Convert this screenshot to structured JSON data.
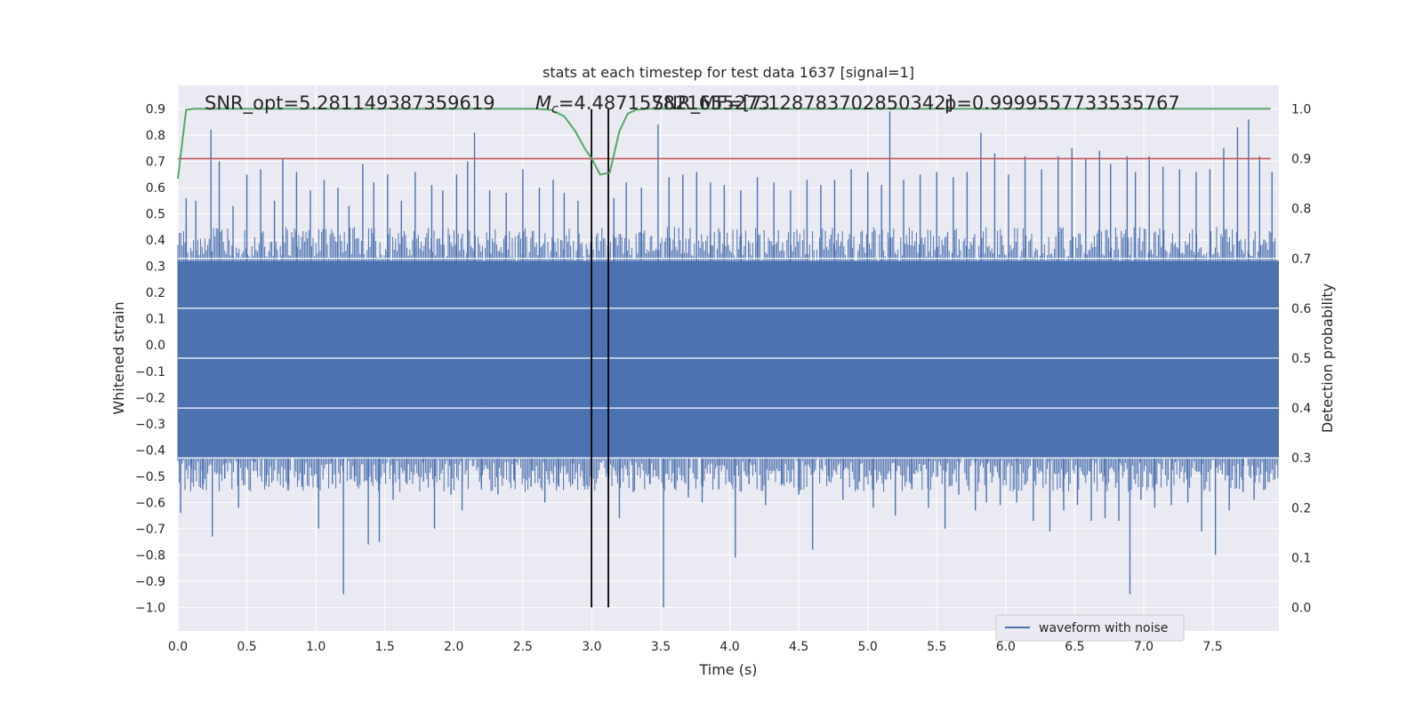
{
  "chart_data": {
    "type": "line",
    "title": "stats at each timestep for test data 1637 [signal=1]",
    "xlabel": "Time (s)",
    "ylabel": "Whitened strain",
    "y2label": "Detection probability",
    "xlim": [
      0.0,
      7.98
    ],
    "ylim": [
      -1.09,
      0.99
    ],
    "y2lim": [
      -0.047,
      1.047
    ],
    "x_ticks": [
      "0.0",
      "0.5",
      "1.0",
      "1.5",
      "2.0",
      "2.5",
      "3.0",
      "3.5",
      "4.0",
      "4.5",
      "5.0",
      "5.5",
      "6.0",
      "6.5",
      "7.0",
      "7.5"
    ],
    "y_ticks": [
      "0.9",
      "0.8",
      "0.7",
      "0.6",
      "0.5",
      "0.4",
      "0.3",
      "0.2",
      "0.1",
      "0.0",
      "−0.1",
      "−0.2",
      "−0.3",
      "−0.4",
      "−0.5",
      "−0.6",
      "−0.7",
      "−0.8",
      "−0.9",
      "−1.0"
    ],
    "y2_ticks": [
      "1.0",
      "0.9",
      "0.8",
      "0.7",
      "0.6",
      "0.5",
      "0.4",
      "0.3",
      "0.2",
      "0.1",
      "0.0"
    ],
    "grid": true,
    "legend_position": "lower-right",
    "annotations": {
      "snr_opt": "SNR_opt=5.281149387359619",
      "mc_symbol": "M",
      "mc_sub": "c",
      "mc_value": "=4.487157821655273",
      "snr_mf": "SNR_MF=[7.128783702850342]",
      "p_value": "p=0.9999557733535767"
    },
    "vertical_markers_x": [
      2.998,
      3.12
    ],
    "threshold_y2": 0.9,
    "series": [
      {
        "name": "waveform with noise",
        "color": "#4c72b0",
        "axis": "left",
        "envelope_top": 0.32,
        "envelope_bottom": -0.43,
        "spikes": [
          [
            0.02,
            -0.64
          ],
          [
            0.06,
            0.56
          ],
          [
            0.1,
            -0.47
          ],
          [
            0.13,
            0.55
          ],
          [
            0.18,
            -0.55
          ],
          [
            0.24,
            0.82
          ],
          [
            0.25,
            -0.73
          ],
          [
            0.3,
            0.7
          ],
          [
            0.34,
            -0.51
          ],
          [
            0.4,
            0.53
          ],
          [
            0.44,
            -0.62
          ],
          [
            0.5,
            0.65
          ],
          [
            0.55,
            -0.48
          ],
          [
            0.6,
            0.67
          ],
          [
            0.64,
            -0.52
          ],
          [
            0.7,
            0.55
          ],
          [
            0.76,
            0.71
          ],
          [
            0.8,
            -0.53
          ],
          [
            0.86,
            0.66
          ],
          [
            0.9,
            -0.54
          ],
          [
            0.96,
            0.59
          ],
          [
            1.02,
            -0.7
          ],
          [
            1.06,
            0.63
          ],
          [
            1.12,
            -0.53
          ],
          [
            1.16,
            0.6
          ],
          [
            1.2,
            -0.95
          ],
          [
            1.24,
            0.53
          ],
          [
            1.28,
            -0.52
          ],
          [
            1.34,
            0.69
          ],
          [
            1.38,
            -0.76
          ],
          [
            1.42,
            0.62
          ],
          [
            1.46,
            -0.75
          ],
          [
            1.52,
            0.65
          ],
          [
            1.56,
            -0.59
          ],
          [
            1.62,
            0.55
          ],
          [
            1.66,
            -0.53
          ],
          [
            1.72,
            0.66
          ],
          [
            1.78,
            -0.52
          ],
          [
            1.84,
            0.61
          ],
          [
            1.86,
            -0.7
          ],
          [
            1.92,
            0.59
          ],
          [
            1.98,
            -0.57
          ],
          [
            2.02,
            0.65
          ],
          [
            2.06,
            -0.63
          ],
          [
            2.1,
            0.7
          ],
          [
            2.15,
            0.81
          ],
          [
            2.2,
            -0.55
          ],
          [
            2.26,
            0.59
          ],
          [
            2.32,
            -0.57
          ],
          [
            2.38,
            0.58
          ],
          [
            2.44,
            -0.52
          ],
          [
            2.5,
            0.67
          ],
          [
            2.56,
            -0.54
          ],
          [
            2.62,
            0.6
          ],
          [
            2.66,
            -0.6
          ],
          [
            2.72,
            0.63
          ],
          [
            2.76,
            -0.54
          ],
          [
            2.8,
            0.58
          ],
          [
            2.86,
            -0.53
          ],
          [
            2.9,
            0.55
          ],
          [
            2.94,
            -0.51
          ],
          [
            3.05,
            -0.4
          ],
          [
            3.08,
            0.32
          ],
          [
            3.16,
            0.56
          ],
          [
            3.2,
            -0.66
          ],
          [
            3.25,
            0.62
          ],
          [
            3.3,
            -0.56
          ],
          [
            3.36,
            0.6
          ],
          [
            3.42,
            -0.53
          ],
          [
            3.48,
            0.84
          ],
          [
            3.52,
            -1.0
          ],
          [
            3.56,
            0.64
          ],
          [
            3.6,
            -0.54
          ],
          [
            3.66,
            0.65
          ],
          [
            3.7,
            -0.58
          ],
          [
            3.76,
            0.66
          ],
          [
            3.8,
            -0.6
          ],
          [
            3.86,
            0.62
          ],
          [
            3.92,
            -0.55
          ],
          [
            3.96,
            0.61
          ],
          [
            4.04,
            -0.81
          ],
          [
            4.08,
            0.59
          ],
          [
            4.14,
            -0.53
          ],
          [
            4.2,
            0.64
          ],
          [
            4.26,
            -0.61
          ],
          [
            4.32,
            0.62
          ],
          [
            4.38,
            -0.53
          ],
          [
            4.44,
            0.59
          ],
          [
            4.5,
            -0.57
          ],
          [
            4.56,
            0.63
          ],
          [
            4.6,
            -0.78
          ],
          [
            4.66,
            0.61
          ],
          [
            4.72,
            -0.52
          ],
          [
            4.76,
            0.63
          ],
          [
            4.82,
            -0.59
          ],
          [
            4.88,
            0.67
          ],
          [
            4.94,
            -0.52
          ],
          [
            5.0,
            0.66
          ],
          [
            5.04,
            -0.62
          ],
          [
            5.1,
            0.61
          ],
          [
            5.16,
            0.89
          ],
          [
            5.2,
            -0.65
          ],
          [
            5.26,
            0.63
          ],
          [
            5.32,
            -0.55
          ],
          [
            5.38,
            0.65
          ],
          [
            5.44,
            -0.62
          ],
          [
            5.5,
            0.66
          ],
          [
            5.56,
            -0.7
          ],
          [
            5.62,
            0.64
          ],
          [
            5.66,
            -0.57
          ],
          [
            5.72,
            0.66
          ],
          [
            5.78,
            -0.63
          ],
          [
            5.82,
            0.81
          ],
          [
            5.86,
            -0.6
          ],
          [
            5.92,
            0.73
          ],
          [
            5.96,
            -0.61
          ],
          [
            6.02,
            0.65
          ],
          [
            6.08,
            -0.6
          ],
          [
            6.14,
            0.72
          ],
          [
            6.2,
            -0.67
          ],
          [
            6.26,
            0.67
          ],
          [
            6.32,
            -0.71
          ],
          [
            6.38,
            0.72
          ],
          [
            6.42,
            -0.63
          ],
          [
            6.48,
            0.75
          ],
          [
            6.52,
            -0.61
          ],
          [
            6.58,
            0.71
          ],
          [
            6.62,
            -0.67
          ],
          [
            6.68,
            0.74
          ],
          [
            6.72,
            -0.66
          ],
          [
            6.76,
            0.69
          ],
          [
            6.82,
            -0.67
          ],
          [
            6.88,
            0.72
          ],
          [
            6.9,
            -0.95
          ],
          [
            6.94,
            0.66
          ],
          [
            6.98,
            -0.59
          ],
          [
            7.04,
            0.72
          ],
          [
            7.08,
            -0.62
          ],
          [
            7.14,
            0.68
          ],
          [
            7.2,
            -0.61
          ],
          [
            7.26,
            0.67
          ],
          [
            7.32,
            -0.6
          ],
          [
            7.38,
            0.66
          ],
          [
            7.42,
            -0.71
          ],
          [
            7.48,
            0.67
          ],
          [
            7.52,
            -0.8
          ],
          [
            7.58,
            0.75
          ],
          [
            7.62,
            -0.63
          ],
          [
            7.68,
            0.83
          ],
          [
            7.72,
            -0.56
          ],
          [
            7.76,
            0.86
          ],
          [
            7.8,
            -0.59
          ],
          [
            7.84,
            0.72
          ],
          [
            7.88,
            -0.55
          ],
          [
            7.93,
            0.66
          ]
        ]
      },
      {
        "color": "#55a868",
        "axis": "right",
        "points": [
          [
            0.0,
            0.86
          ],
          [
            0.03,
            0.93
          ],
          [
            0.06,
            0.998
          ],
          [
            0.12,
            1.0
          ],
          [
            2.6,
            1.0
          ],
          [
            2.7,
            0.998
          ],
          [
            2.8,
            0.985
          ],
          [
            2.88,
            0.955
          ],
          [
            2.95,
            0.92
          ],
          [
            3.0,
            0.9
          ],
          [
            3.06,
            0.868
          ],
          [
            3.13,
            0.872
          ],
          [
            3.2,
            0.955
          ],
          [
            3.26,
            0.99
          ],
          [
            3.32,
            0.998
          ],
          [
            3.4,
            1.0
          ],
          [
            7.92,
            1.0
          ]
        ]
      }
    ]
  }
}
